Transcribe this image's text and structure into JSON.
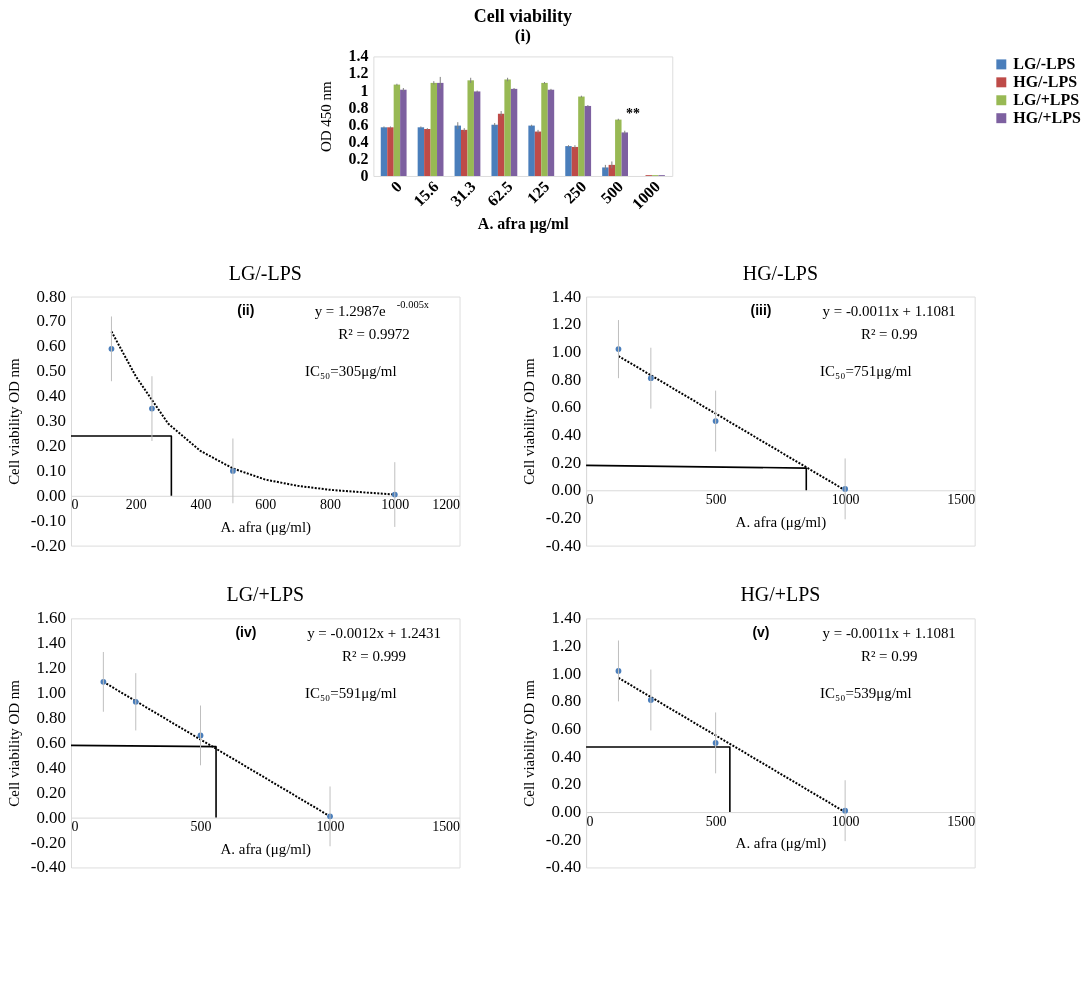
{
  "chart_data": [
    {
      "type": "bar",
      "title": "Cell viability",
      "subtitle": "(i)",
      "xlabel": "A. afra μg/ml",
      "ylabel": "OD 450 nm",
      "categories": [
        "0",
        "15.6",
        "31.3",
        "62.5",
        "125",
        "250",
        "500",
        "1000"
      ],
      "series": [
        {
          "name": "LG/-LPS",
          "color": "#4a7ebb",
          "values": [
            0.57,
            0.57,
            0.59,
            0.6,
            0.59,
            0.35,
            0.1,
            0.0
          ],
          "errors": [
            0.01,
            0.01,
            0.04,
            0.02,
            0.01,
            0.01,
            0.03,
            null
          ]
        },
        {
          "name": "HG/-LPS",
          "color": "#be4b48",
          "values": [
            0.57,
            0.55,
            0.54,
            0.73,
            0.52,
            0.34,
            0.13,
            0.01
          ],
          "errors": [
            0.01,
            0.01,
            0.02,
            0.03,
            0.02,
            0.02,
            0.04,
            null
          ]
        },
        {
          "name": "LG/+LPS",
          "color": "#98b954",
          "values": [
            1.07,
            1.09,
            1.12,
            1.13,
            1.09,
            0.93,
            0.66,
            0.01
          ],
          "errors": [
            0.01,
            0.02,
            0.03,
            0.02,
            0.01,
            0.01,
            0.01,
            null
          ]
        },
        {
          "name": "HG/+LPS",
          "color": "#7d60a0",
          "values": [
            1.01,
            1.09,
            0.99,
            1.02,
            1.01,
            0.82,
            0.51,
            0.01
          ],
          "errors": [
            0.02,
            0.07,
            0.01,
            0.01,
            0.01,
            0.01,
            0.02,
            null
          ]
        }
      ],
      "ylim": [
        0,
        1.4
      ],
      "yticks": [
        0,
        0.2,
        0.4,
        0.6,
        0.8,
        1,
        1.2,
        1.4
      ],
      "legend": "right",
      "annotations": [
        {
          "text": "**",
          "x": "500",
          "y": 0.72
        }
      ]
    },
    {
      "type": "scatter",
      "title": "LG/-LPS",
      "xlabel": "A. afra (μg/ml)",
      "ylabel": "Cell viability OD nm",
      "series": [
        {
          "type": "scatter",
          "marker": "circle",
          "color": "#4a7ebb",
          "x": [
            125,
            250,
            500,
            1000
          ],
          "values": [
            0.59,
            0.35,
            0.1,
            0.005
          ],
          "errors": [
            0.13,
            0.13,
            0.13,
            0.13
          ]
        },
        {
          "type": "line",
          "line_style": "dotted",
          "color": "#000000",
          "x": [
            125,
            200,
            300,
            400,
            500,
            600,
            700,
            800,
            900,
            1000
          ],
          "values": [
            0.66,
            0.48,
            0.29,
            0.18,
            0.11,
            0.065,
            0.04,
            0.024,
            0.014,
            0.005
          ]
        },
        {
          "type": "line",
          "line_style": "solid",
          "color": "#000000",
          "x": [
            0,
            310,
            310
          ],
          "values": [
            0.24,
            0.24,
            0
          ]
        }
      ],
      "xlim": [
        0,
        1200
      ],
      "xticks": [
        0,
        200,
        400,
        600,
        800,
        1000,
        1200
      ],
      "ylim": [
        -0.2,
        0.8
      ],
      "yticks": [
        {
          "value": -0.2,
          "label": "-0.20"
        },
        {
          "value": -0.1,
          "label": "-0.10"
        },
        {
          "value": 0,
          "label": "0.00"
        },
        {
          "value": 0.1,
          "label": "0.10"
        },
        {
          "value": 0.2,
          "label": "0.20"
        },
        {
          "value": 0.3,
          "label": "0.30"
        },
        {
          "value": 0.4,
          "label": "0.40"
        },
        {
          "value": 0.5,
          "label": "0.50"
        },
        {
          "value": 0.6,
          "label": "0.60"
        },
        {
          "value": 0.7,
          "label": "0.70"
        },
        {
          "value": 0.8,
          "label": "0.80"
        }
      ],
      "annotations": [
        "(ii)",
        "y = 1.2987e$^{-0.005x}$",
        "R² = 0.9972",
        "IC₅₀=305μg/ml"
      ]
    },
    {
      "type": "scatter",
      "title": "HG/-LPS",
      "xlabel": "A. afra (μg/ml)",
      "ylabel": "Cell viability OD nm",
      "series": [
        {
          "type": "scatter",
          "marker": "circle",
          "color": "#4a7ebb",
          "x": [
            125,
            250,
            500,
            1000
          ],
          "values": [
            1.02,
            0.81,
            0.5,
            0.01
          ],
          "errors": [
            0.21,
            0.22,
            0.22,
            0.22
          ]
        },
        {
          "type": "line",
          "line_style": "dotted",
          "color": "#000000",
          "x": [
            125,
            1000
          ],
          "values": [
            0.97,
            0
          ]
        },
        {
          "type": "line",
          "line_style": "solid",
          "color": "#000000",
          "x": [
            0,
            850,
            850
          ],
          "values": [
            0.18,
            0.16,
            0
          ]
        }
      ],
      "xlim": [
        0,
        1500
      ],
      "xticks": [
        0,
        500,
        1000,
        1500
      ],
      "ylim": [
        -0.4,
        1.4
      ],
      "yticks": [
        {
          "value": -0.4,
          "label": "-0.40"
        },
        {
          "value": -0.2,
          "label": "-0.20"
        },
        {
          "value": 0,
          "label": "0.00"
        },
        {
          "value": 0.2,
          "label": "0.20"
        },
        {
          "value": 0.4,
          "label": "0.40"
        },
        {
          "value": 0.6,
          "label": "0.60"
        },
        {
          "value": 0.8,
          "label": "0.80"
        },
        {
          "value": 1,
          "label": "1.00"
        },
        {
          "value": 1.2,
          "label": "1.20"
        },
        {
          "value": 1.4,
          "label": "1.40"
        }
      ],
      "annotations": [
        "(iii)",
        "y = -0.0011x + 1.1081",
        "R² = 0.99",
        "IC₅₀=751μg/ml"
      ]
    },
    {
      "type": "scatter",
      "title": "LG/+LPS",
      "xlabel": "A. afra (μg/ml)",
      "ylabel": "Cell viability OD nm",
      "series": [
        {
          "type": "scatter",
          "marker": "circle",
          "color": "#4a7ebb",
          "x": [
            125,
            250,
            500,
            1000
          ],
          "values": [
            1.09,
            0.93,
            0.66,
            0.01
          ],
          "errors": [
            0.24,
            0.23,
            0.24,
            0.24
          ]
        },
        {
          "type": "line",
          "line_style": "dotted",
          "color": "#000000",
          "x": [
            125,
            1000
          ],
          "values": [
            1.09,
            0.01
          ]
        },
        {
          "type": "line",
          "line_style": "solid",
          "color": "#000000",
          "x": [
            0,
            560,
            560
          ],
          "values": [
            0.58,
            0.57,
            0
          ]
        }
      ],
      "xlim": [
        0,
        1500
      ],
      "xticks": [
        0,
        500,
        1000,
        1500
      ],
      "ylim": [
        -0.4,
        1.6
      ],
      "yticks": [
        {
          "value": -0.4,
          "label": "-0.40"
        },
        {
          "value": -0.2,
          "label": "-0.20"
        },
        {
          "value": 0,
          "label": "0.00"
        },
        {
          "value": 0.2,
          "label": "0.20"
        },
        {
          "value": 0.4,
          "label": "0.40"
        },
        {
          "value": 0.6,
          "label": "0.60"
        },
        {
          "value": 0.8,
          "label": "0.80"
        },
        {
          "value": 1,
          "label": "1.00"
        },
        {
          "value": 1.2,
          "label": "1.20"
        },
        {
          "value": 1.4,
          "label": "1.40"
        },
        {
          "value": 1.6,
          "label": "1.60"
        }
      ],
      "annotations": [
        "(iv)",
        "y = -0.0012x + 1.2431",
        "R² = 0.999",
        "IC₅₀=591μg/ml"
      ]
    },
    {
      "type": "scatter",
      "title": "HG/+LPS",
      "xlabel": "A. afra (μg/ml)",
      "ylabel": "Cell viability OD nm",
      "series": [
        {
          "type": "scatter",
          "marker": "circle",
          "color": "#4a7ebb",
          "x": [
            125,
            250,
            500,
            1000
          ],
          "values": [
            1.02,
            0.81,
            0.5,
            0.01
          ],
          "errors": [
            0.22,
            0.22,
            0.22,
            0.22
          ]
        },
        {
          "type": "line",
          "line_style": "dotted",
          "color": "#000000",
          "x": [
            125,
            1000
          ],
          "values": [
            0.97,
            0
          ]
        },
        {
          "type": "line",
          "line_style": "solid",
          "color": "#000000",
          "x": [
            0,
            555,
            555
          ],
          "values": [
            0.47,
            0.47,
            0
          ]
        }
      ],
      "xlim": [
        0,
        1500
      ],
      "xticks": [
        0,
        500,
        1000,
        1500
      ],
      "ylim": [
        -0.4,
        1.4
      ],
      "yticks": [
        {
          "value": -0.4,
          "label": "-0.40"
        },
        {
          "value": -0.2,
          "label": "-0.20"
        },
        {
          "value": 0,
          "label": "0.00"
        },
        {
          "value": 0.2,
          "label": "0.20"
        },
        {
          "value": 0.4,
          "label": "0.40"
        },
        {
          "value": 0.6,
          "label": "0.60"
        },
        {
          "value": 0.8,
          "label": "0.80"
        },
        {
          "value": 1,
          "label": "1.00"
        },
        {
          "value": 1.2,
          "label": "1.20"
        },
        {
          "value": 1.4,
          "label": "1.40"
        }
      ],
      "annotations": [
        "(v)",
        "y = -0.0011x + 1.1081",
        "R² = 0.99",
        "IC₅₀=539μg/ml"
      ]
    }
  ]
}
